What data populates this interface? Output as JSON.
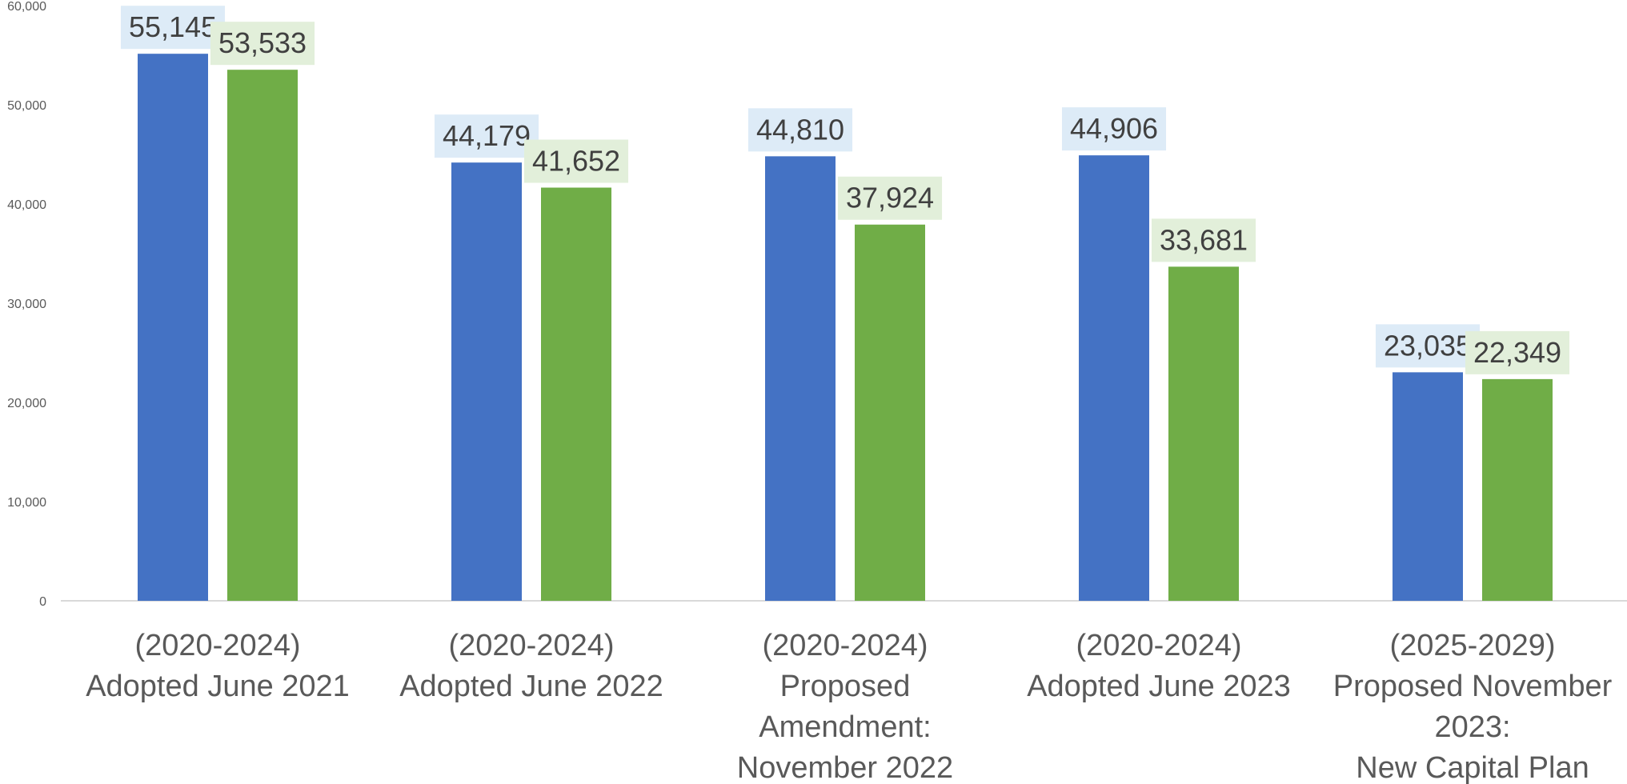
{
  "chart_data": {
    "type": "bar",
    "categories": [
      [
        "(2020-2024)",
        "Adopted June 2021"
      ],
      [
        "(2020-2024)",
        "Adopted June 2022"
      ],
      [
        "(2020-2024)",
        "Proposed",
        "Amendment:",
        "November 2022"
      ],
      [
        "(2020-2024)",
        "Adopted June 2023"
      ],
      [
        "(2025-2029)",
        "Proposed November",
        "2023:",
        "New Capital Plan"
      ]
    ],
    "series": [
      {
        "values": [
          55145,
          44179,
          44810,
          44906,
          23035
        ],
        "color": "#4472C4",
        "label_bg": "#DDEBF7"
      },
      {
        "values": [
          53533,
          41652,
          37924,
          33681,
          22349
        ],
        "color": "#70AD47",
        "label_bg": "#E2EFDA"
      }
    ],
    "data_labels": [
      [
        "55,145",
        "44,179",
        "44,810",
        "44,906",
        "23,035"
      ],
      [
        "53,533",
        "41,652",
        "37,924",
        "33,681",
        "22,349"
      ]
    ],
    "y_ticks": [
      "0",
      "10,000",
      "20,000",
      "30,000",
      "40,000",
      "50,000",
      "60,000"
    ],
    "ylim": [
      0,
      60000
    ],
    "grid": false,
    "legend": "none"
  }
}
